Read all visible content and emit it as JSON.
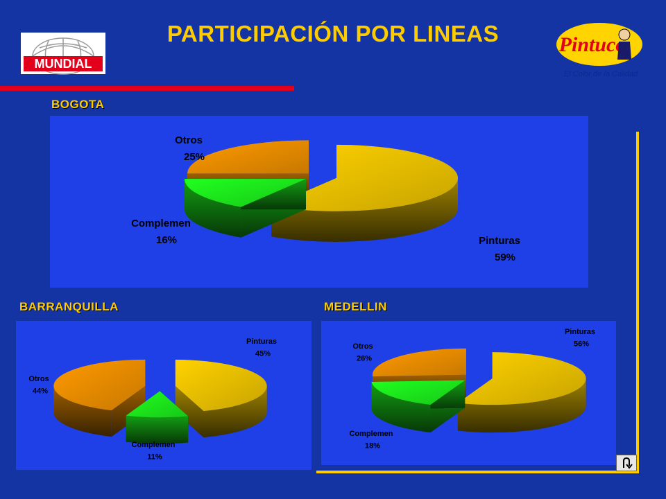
{
  "title": "PARTICIPACIÓN POR LINEAS",
  "logos": {
    "left": "MUNDIAL",
    "right": "Pintuco",
    "right_tagline": "El Color de la Calidad"
  },
  "colors": {
    "background": "#1434a4",
    "title": "#ffcc00",
    "pinturas": "#ffd200",
    "complemen": "#1fff1f",
    "otros": "#ff9a00"
  },
  "chart_data": [
    {
      "type": "pie",
      "title": "BOGOTA",
      "categories": [
        "Pinturas",
        "Complemen",
        "Otros"
      ],
      "values": [
        59,
        16,
        25
      ],
      "value_labels": [
        "59%",
        "16%",
        "25%"
      ],
      "unit": "%"
    },
    {
      "type": "pie",
      "title": "BARRANQUILLA",
      "categories": [
        "Pinturas",
        "Complemen",
        "Otros"
      ],
      "values": [
        45,
        11,
        44
      ],
      "value_labels": [
        "45%",
        "11%",
        "44%"
      ],
      "unit": "%"
    },
    {
      "type": "pie",
      "title": "MEDELLIN",
      "categories": [
        "Pinturas",
        "Complemen",
        "Otros"
      ],
      "values": [
        56,
        18,
        26
      ],
      "value_labels": [
        "56%",
        "18%",
        "26%"
      ],
      "unit": "%"
    }
  ]
}
